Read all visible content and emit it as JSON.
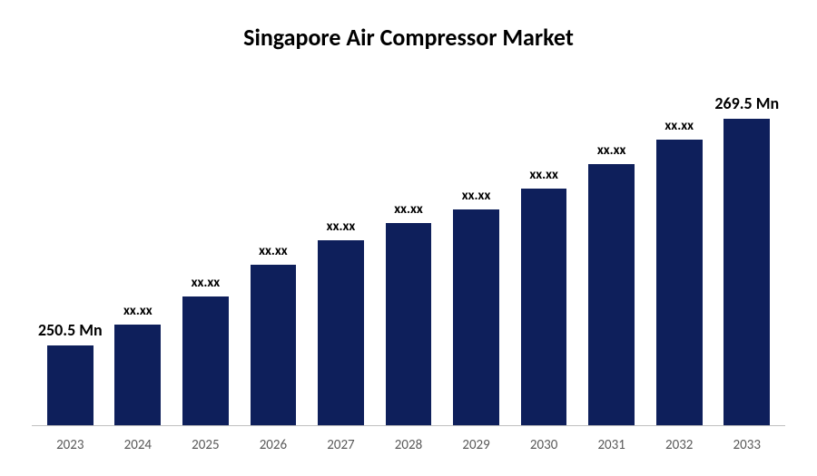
{
  "chart": {
    "type": "bar",
    "title": "Singapore Air Compressor Market",
    "title_fontsize": 26,
    "title_color": "#000000",
    "background_color": "#ffffff",
    "axis_line_color": "#bfbfbf",
    "categories": [
      "2023",
      "2024",
      "2025",
      "2026",
      "2027",
      "2028",
      "2029",
      "2030",
      "2031",
      "2032",
      "2033"
    ],
    "value_labels": [
      "250.5 Mn",
      "xx.xx",
      "xx.xx",
      "xx.xx",
      "xx.xx",
      "xx.xx",
      "xx.xx",
      "xx.xx",
      "xx.xx",
      "xx.xx",
      "269.5 Mn"
    ],
    "bar_heights_pct": [
      23,
      29,
      37,
      46,
      53,
      58,
      62,
      68,
      75,
      82,
      88
    ],
    "bar_color": "#0e1f5b",
    "bar_width_ratio": 0.68,
    "label_fontsize_bold": 18,
    "label_fontsize_normal": 15,
    "xaxis_fontsize": 15,
    "xaxis_color": "#595959"
  }
}
